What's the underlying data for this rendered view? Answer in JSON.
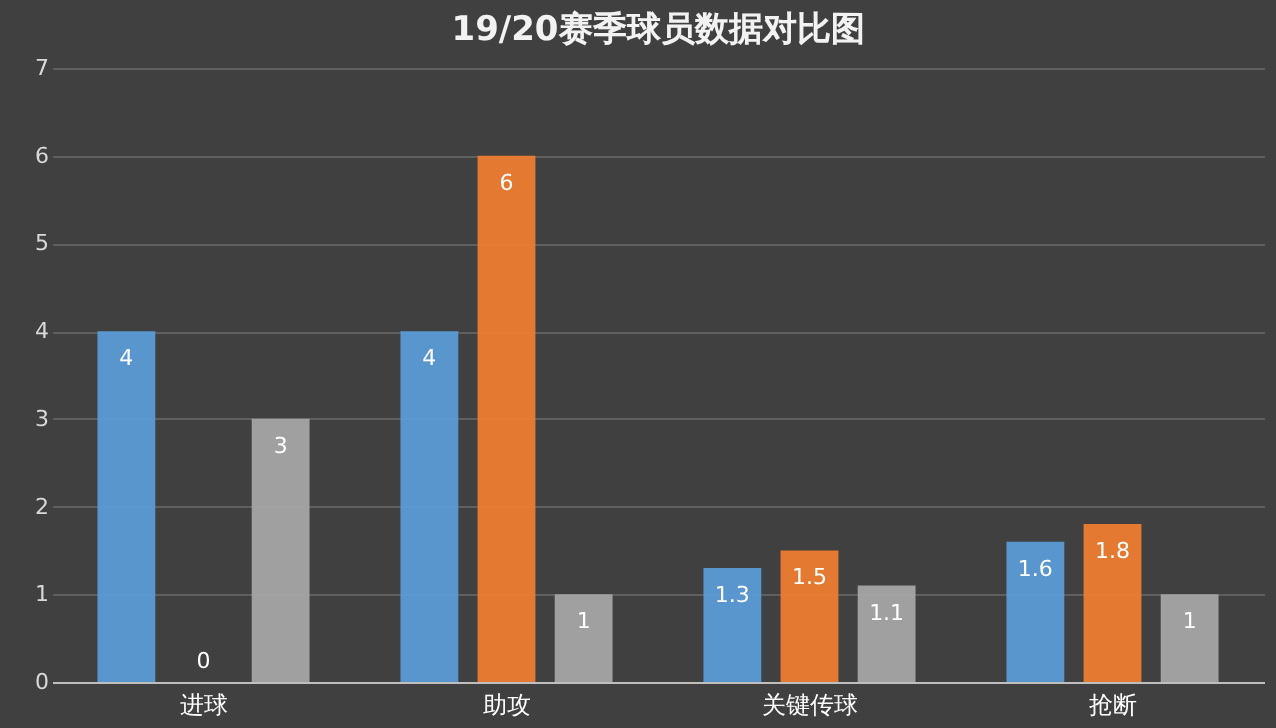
{
  "chart_data": {
    "type": "bar",
    "title": "19/20赛季球员数据对比图",
    "categories": [
      "进球",
      "助攻",
      "关键传球",
      "抢断"
    ],
    "series": [
      {
        "color": "#5b9bd5",
        "values": [
          4,
          4,
          1.3,
          1.6
        ]
      },
      {
        "color": "#ed7d31",
        "values": [
          0,
          6,
          1.5,
          1.8
        ]
      },
      {
        "color": "#a5a5a5",
        "values": [
          3,
          1,
          1.1,
          1
        ]
      }
    ],
    "ylim": [
      0,
      7
    ],
    "yticks": [
      0,
      1,
      2,
      3,
      4,
      5,
      6,
      7
    ],
    "grid": "y",
    "data_labels": true,
    "legend": false
  }
}
